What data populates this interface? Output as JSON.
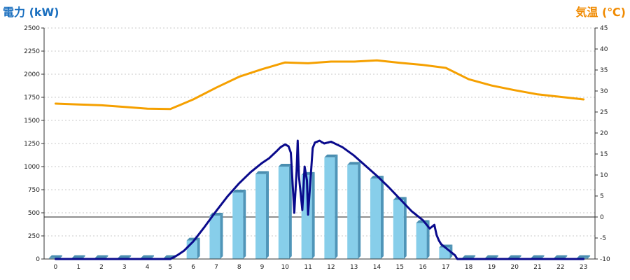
{
  "header": {
    "left_unit": "電力 (kW)",
    "right_unit": "気温 (℃)"
  },
  "colors": {
    "bar": "#87ceea",
    "bar_side": "#4f95b8",
    "bar_top": "#4a8eb0",
    "power_line": "#0a0a8c",
    "temp_line": "#f5a000",
    "grid": "#c8c8c8",
    "axis": "#333333",
    "left_title": "#1a6fbf",
    "right_title": "#f08a00"
  },
  "chart_data": {
    "type": "bar",
    "title": "",
    "xlabel": "",
    "ylabel": "電力 (kW)",
    "y2label": "気温 (℃)",
    "ylim": [
      0,
      2500
    ],
    "y2lim": [
      -10,
      45
    ],
    "yticks": [
      0,
      250,
      500,
      750,
      1000,
      1250,
      1500,
      1750,
      2000,
      2250,
      2500
    ],
    "y2ticks": [
      -10,
      -5,
      0,
      5,
      10,
      15,
      20,
      25,
      30,
      35,
      40,
      45
    ],
    "grid": true,
    "categories": [
      "0",
      "1",
      "2",
      "3",
      "4",
      "5",
      "6",
      "7",
      "8",
      "9",
      "10",
      "11",
      "12",
      "13",
      "14",
      "15",
      "16",
      "17",
      "18",
      "19",
      "20",
      "21",
      "22",
      "23"
    ],
    "series": [
      {
        "type": "bar",
        "axis": "left",
        "values": [
          10,
          10,
          10,
          10,
          10,
          10,
          200,
          470,
          720,
          920,
          1000,
          910,
          1100,
          1020,
          870,
          640,
          390,
          125,
          10,
          10,
          10,
          10,
          10,
          10
        ]
      },
      {
        "type": "line",
        "axis": "left",
        "x": [
          0,
          5,
          5.3,
          5.6,
          6,
          6.5,
          7,
          7.5,
          8,
          8.5,
          9,
          9.3,
          9.6,
          9.8,
          10,
          10.15,
          10.25,
          10.4,
          10.5,
          10.55,
          10.6,
          10.75,
          10.85,
          10.95,
          11,
          11.2,
          11.3,
          11.5,
          11.7,
          12,
          12.5,
          13,
          13.5,
          14,
          14.5,
          15,
          15.5,
          16,
          16.3,
          16.5,
          16.6,
          16.7,
          16.8,
          17,
          17.2,
          17.4,
          17.5,
          23
        ],
        "y": [
          0,
          0,
          40,
          90,
          190,
          350,
          520,
          680,
          820,
          940,
          1040,
          1090,
          1160,
          1210,
          1240,
          1220,
          1150,
          500,
          950,
          1280,
          900,
          530,
          1000,
          850,
          480,
          1200,
          1260,
          1280,
          1250,
          1270,
          1210,
          1120,
          1010,
          900,
          780,
          650,
          520,
          420,
          330,
          370,
          260,
          200,
          160,
          120,
          80,
          40,
          0,
          0
        ]
      },
      {
        "type": "line",
        "axis": "right",
        "x": [
          0,
          1,
          2,
          3,
          4,
          5,
          6,
          7,
          8,
          9,
          10,
          11,
          12,
          13,
          14,
          15,
          16,
          17,
          18,
          19,
          20,
          21,
          22,
          23
        ],
        "y": [
          27,
          26.8,
          26.6,
          26.2,
          25.8,
          25.7,
          28,
          30.8,
          33.4,
          35.2,
          36.8,
          36.6,
          37.0,
          37.0,
          37.3,
          36.7,
          36.2,
          35.5,
          32.8,
          31.3,
          30.2,
          29.2,
          28.6,
          28.0
        ]
      }
    ]
  }
}
